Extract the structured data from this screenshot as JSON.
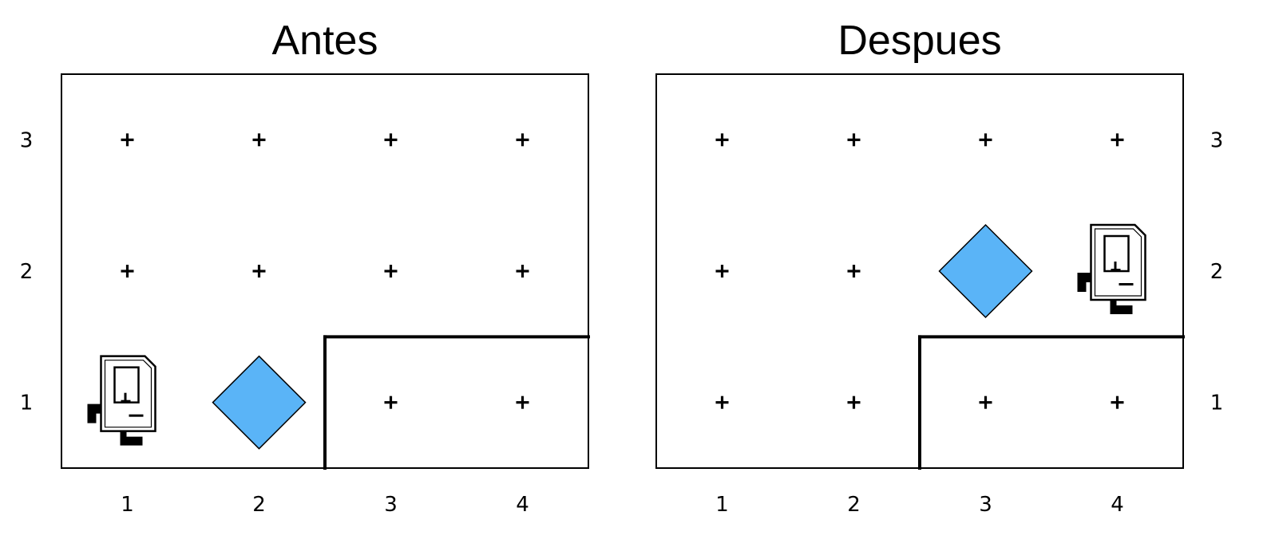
{
  "panels": [
    {
      "title": "Antes",
      "x_ticks": [
        "1",
        "2",
        "3",
        "4"
      ],
      "y_ticks": [
        "3",
        "2",
        "1"
      ],
      "y_tick_side": "left",
      "grid": {
        "columns": 4,
        "rows": 3
      },
      "robot": {
        "col": 1,
        "row": 1,
        "icon": "robot-computer-icon"
      },
      "gem": {
        "col": 2,
        "row": 1,
        "icon": "diamond-icon"
      },
      "markers": [
        {
          "col": 1,
          "row": 3
        },
        {
          "col": 2,
          "row": 3
        },
        {
          "col": 3,
          "row": 3
        },
        {
          "col": 4,
          "row": 3
        },
        {
          "col": 1,
          "row": 2
        },
        {
          "col": 2,
          "row": 2
        },
        {
          "col": 3,
          "row": 2
        },
        {
          "col": 4,
          "row": 2
        },
        {
          "col": 3,
          "row": 1
        },
        {
          "col": 4,
          "row": 1
        }
      ],
      "walls": [
        {
          "from": [
            2.5,
            0.5
          ],
          "to": [
            2.5,
            1.5
          ]
        },
        {
          "from": [
            2.5,
            1.5
          ],
          "to": [
            4.5,
            1.5
          ]
        }
      ]
    },
    {
      "title": "Despues",
      "x_ticks": [
        "1",
        "2",
        "3",
        "4"
      ],
      "y_ticks": [
        "3",
        "2",
        "1"
      ],
      "y_tick_side": "right",
      "grid": {
        "columns": 4,
        "rows": 3
      },
      "robot": {
        "col": 4,
        "row": 2,
        "icon": "robot-computer-icon"
      },
      "gem": {
        "col": 3,
        "row": 2,
        "icon": "diamond-icon"
      },
      "markers": [
        {
          "col": 1,
          "row": 3
        },
        {
          "col": 2,
          "row": 3
        },
        {
          "col": 3,
          "row": 3
        },
        {
          "col": 4,
          "row": 3
        },
        {
          "col": 1,
          "row": 2
        },
        {
          "col": 2,
          "row": 2
        },
        {
          "col": 1,
          "row": 1
        },
        {
          "col": 2,
          "row": 1
        },
        {
          "col": 3,
          "row": 1
        },
        {
          "col": 4,
          "row": 1
        }
      ],
      "walls": [
        {
          "from": [
            2.5,
            0.5
          ],
          "to": [
            2.5,
            1.5
          ]
        },
        {
          "from": [
            2.5,
            1.5
          ],
          "to": [
            4.5,
            1.5
          ]
        }
      ]
    }
  ],
  "colors": {
    "gem_fill": "#5ab4f7",
    "line": "#000000",
    "background": "#ffffff"
  }
}
